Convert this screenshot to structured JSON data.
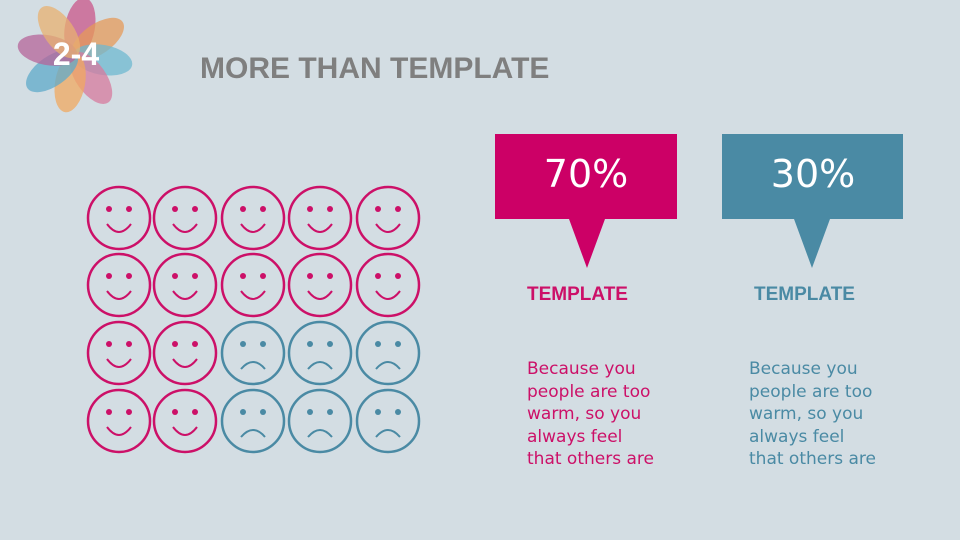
{
  "header": {
    "number": "2-4",
    "title": "MORE THAN TEMPLATE"
  },
  "callouts": [
    {
      "value": "70%",
      "heading": "TEMPLATE",
      "body": [
        "Because you",
        "people are too",
        "warm, so you",
        "always feel",
        "that others are"
      ]
    },
    {
      "value": "30%",
      "heading": "TEMPLATE",
      "body": [
        "Because you",
        "people are too",
        "warm, so you",
        "always feel",
        "that others are"
      ]
    }
  ]
}
